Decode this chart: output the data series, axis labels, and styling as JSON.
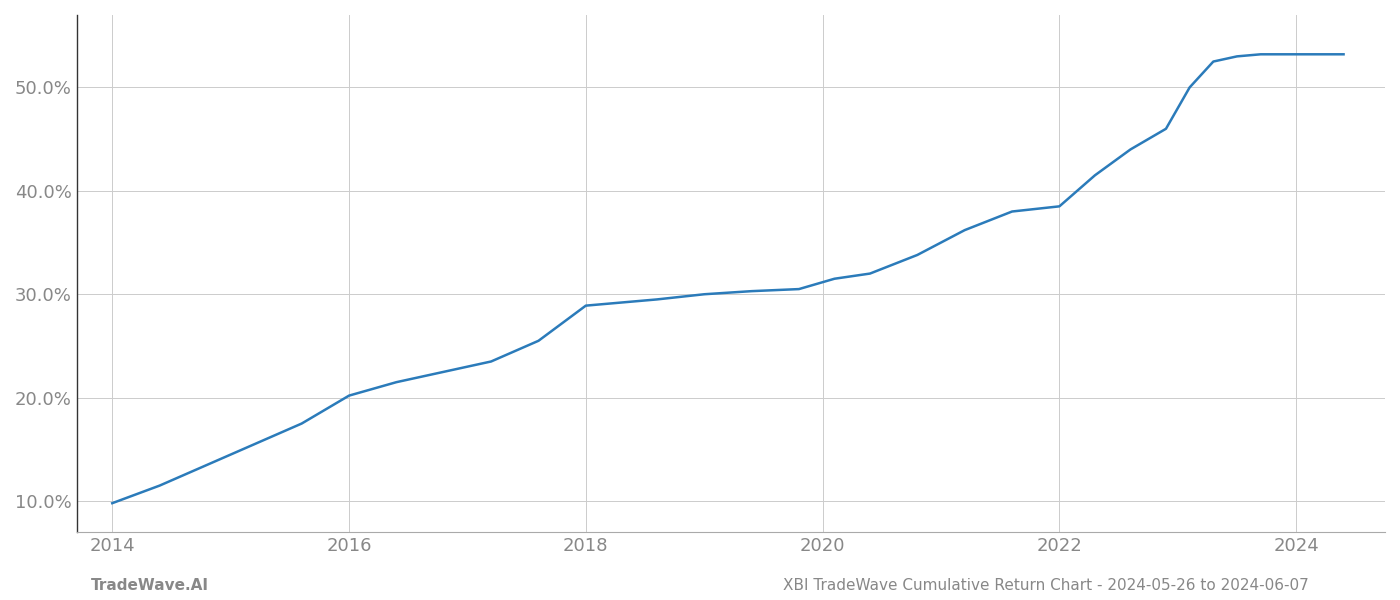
{
  "x_values": [
    2014.0,
    2014.4,
    2014.8,
    2015.2,
    2015.6,
    2016.0,
    2016.4,
    2016.8,
    2017.2,
    2017.6,
    2018.0,
    2018.3,
    2018.6,
    2019.0,
    2019.4,
    2019.8,
    2020.1,
    2020.4,
    2020.8,
    2021.2,
    2021.6,
    2022.0,
    2022.3,
    2022.6,
    2022.9,
    2023.1,
    2023.3,
    2023.5,
    2023.7,
    2024.0,
    2024.4
  ],
  "y_values": [
    9.8,
    11.5,
    13.5,
    15.5,
    17.5,
    20.2,
    21.5,
    22.5,
    23.5,
    25.5,
    28.9,
    29.2,
    29.5,
    30.0,
    30.3,
    30.5,
    31.5,
    32.0,
    33.8,
    36.2,
    38.0,
    38.5,
    41.5,
    44.0,
    46.0,
    50.0,
    52.5,
    53.0,
    53.2,
    53.2,
    53.2
  ],
  "line_color": "#2b7bba",
  "line_width": 1.8,
  "ylabel_ticks": [
    10.0,
    20.0,
    30.0,
    40.0,
    50.0
  ],
  "xtick_labels": [
    "2014",
    "2016",
    "2018",
    "2020",
    "2022",
    "2024"
  ],
  "xtick_positions": [
    2014,
    2016,
    2018,
    2020,
    2022,
    2024
  ],
  "xlim": [
    2013.7,
    2024.75
  ],
  "ylim": [
    7.0,
    57.0
  ],
  "grid_color": "#cccccc",
  "grid_linestyle": "-",
  "background_color": "#ffffff",
  "footer_left": "TradeWave.AI",
  "footer_right": "XBI TradeWave Cumulative Return Chart - 2024-05-26 to 2024-06-07",
  "footer_fontsize": 11,
  "tick_label_color": "#888888",
  "tick_fontsize": 13,
  "left_spine_color": "#333333",
  "bottom_spine_color": "#aaaaaa"
}
